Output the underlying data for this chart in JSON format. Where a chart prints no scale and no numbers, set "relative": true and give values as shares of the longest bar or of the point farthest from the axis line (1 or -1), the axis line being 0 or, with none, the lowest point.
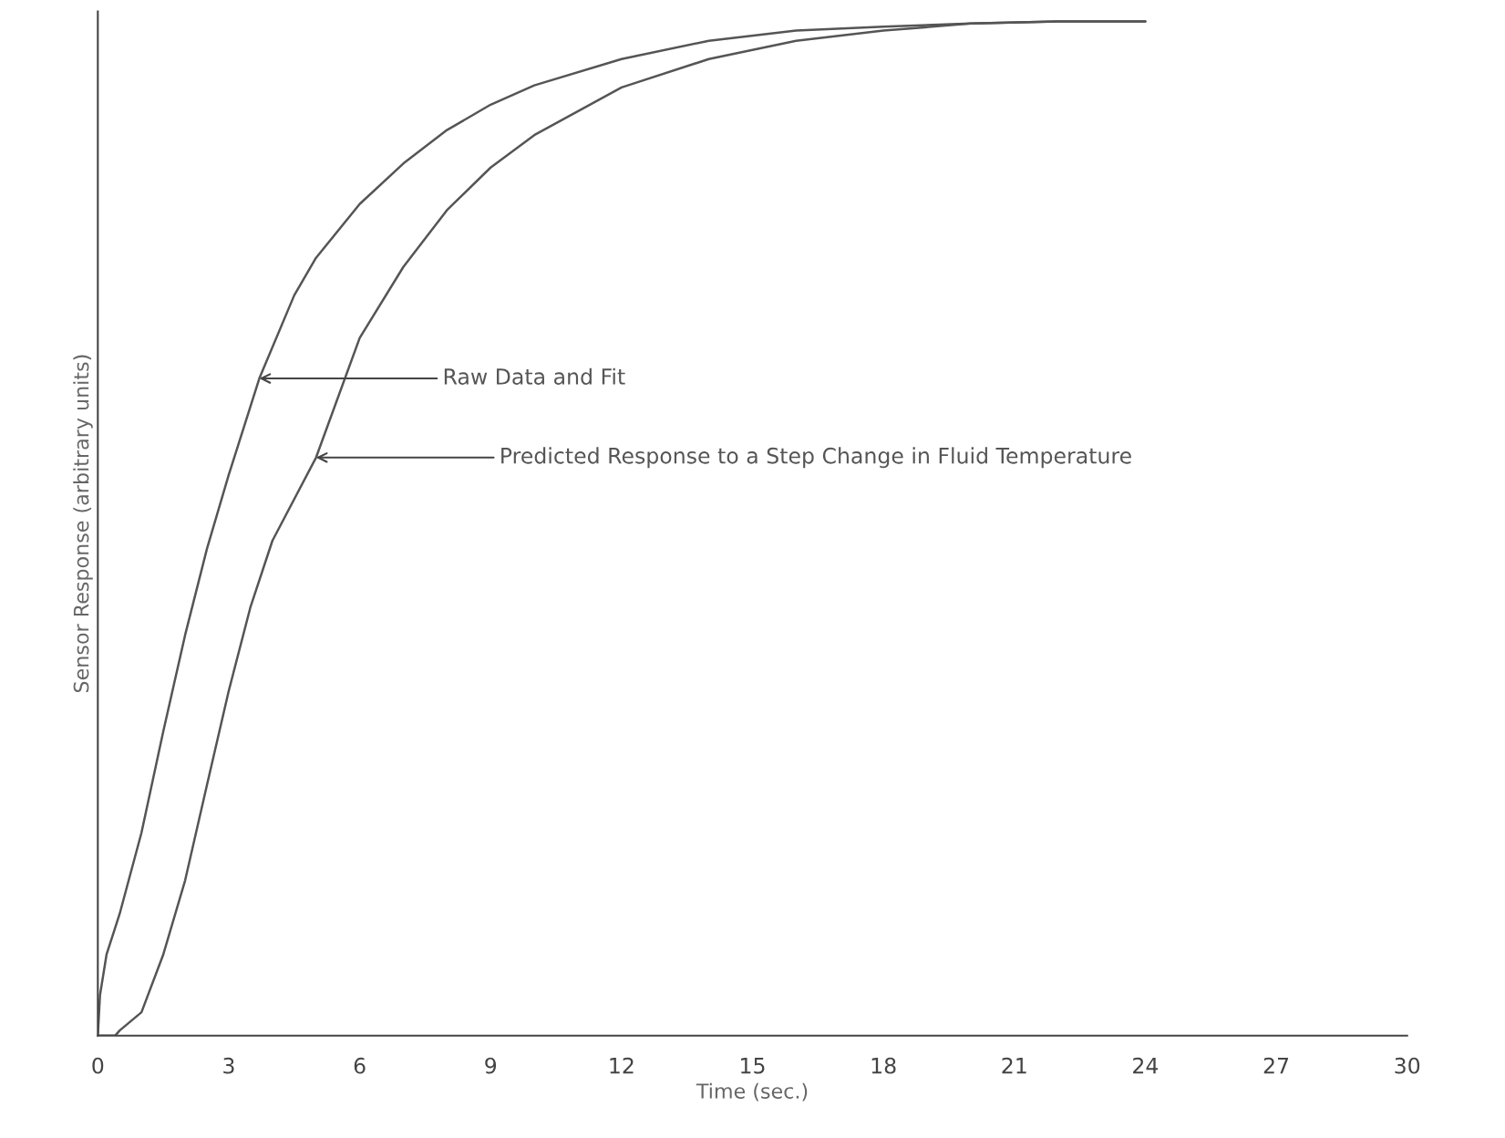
{
  "chart_data": {
    "type": "line",
    "relative": true,
    "xlabel": "Time (sec.)",
    "ylabel": "Sensor Response (arbitrary units)",
    "xlim": [
      0,
      30
    ],
    "xticks": [
      0,
      3,
      6,
      9,
      12,
      15,
      18,
      21,
      24,
      27,
      30
    ],
    "grid": false,
    "legend": false,
    "series": [
      {
        "color": "#555555",
        "x": [
          0,
          0.05,
          0.2,
          0.5,
          1,
          1.5,
          2,
          2.5,
          3,
          3.7,
          4.5,
          5,
          6,
          7,
          8,
          9,
          10,
          12,
          14,
          16,
          18,
          20,
          22,
          24
        ],
        "values": [
          0,
          0.04,
          0.08,
          0.12,
          0.2,
          0.3,
          0.395,
          0.48,
          0.553,
          0.648,
          0.73,
          0.767,
          0.82,
          0.86,
          0.893,
          0.918,
          0.937,
          0.963,
          0.981,
          0.991,
          0.995,
          0.998,
          1.0,
          1.0
        ]
      },
      {
        "color": "#555555",
        "x": [
          0,
          0.4,
          0.5,
          1,
          1.5,
          2,
          2.5,
          3,
          3.5,
          4,
          5,
          6,
          7,
          8,
          9,
          10,
          12,
          14,
          16,
          18,
          20,
          22,
          24
        ],
        "values": [
          0,
          0,
          0.005,
          0.023,
          0.08,
          0.153,
          0.247,
          0.34,
          0.423,
          0.488,
          0.57,
          0.688,
          0.758,
          0.814,
          0.856,
          0.888,
          0.935,
          0.963,
          0.981,
          0.991,
          0.998,
          1.0,
          1.0
        ]
      }
    ],
    "annotations": [
      {
        "text": "Raw Data and Fit",
        "x": 3.7,
        "y": 0.648
      },
      {
        "text": "Predicted Response to a Step Change in Fluid Temperature",
        "x": 5.0,
        "y": 0.57
      }
    ]
  }
}
